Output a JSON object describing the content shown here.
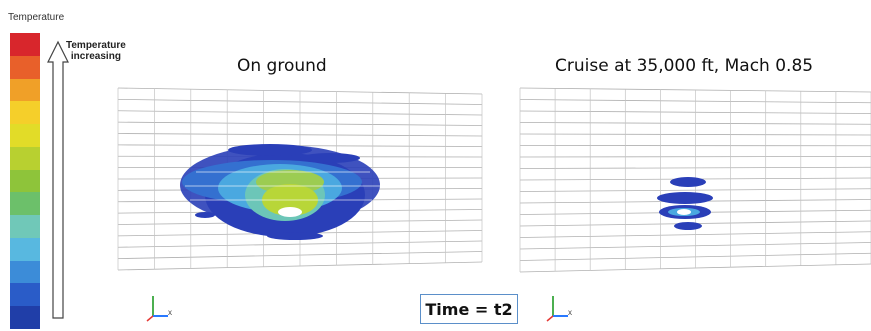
{
  "legend": {
    "title": "Temperature",
    "arrow_label_line1": "Temperature",
    "arrow_label_line2": "increasing",
    "colors": [
      "#d8262c",
      "#e8602a",
      "#f0a028",
      "#f5cf2a",
      "#e2dc28",
      "#b8d030",
      "#8ec43a",
      "#6cc06a",
      "#70c8b8",
      "#58b8e0",
      "#3c8cd8",
      "#2a5cc8",
      "#203ea8"
    ]
  },
  "panels": {
    "left_title": "On ground",
    "right_title": "Cruise at 35,000 ft, Mach 0.85"
  },
  "time_label": "Time = t2",
  "axis_triad": {
    "x_label": "x",
    "color_y": "#4caf50",
    "color_x": "#2979ff"
  }
}
